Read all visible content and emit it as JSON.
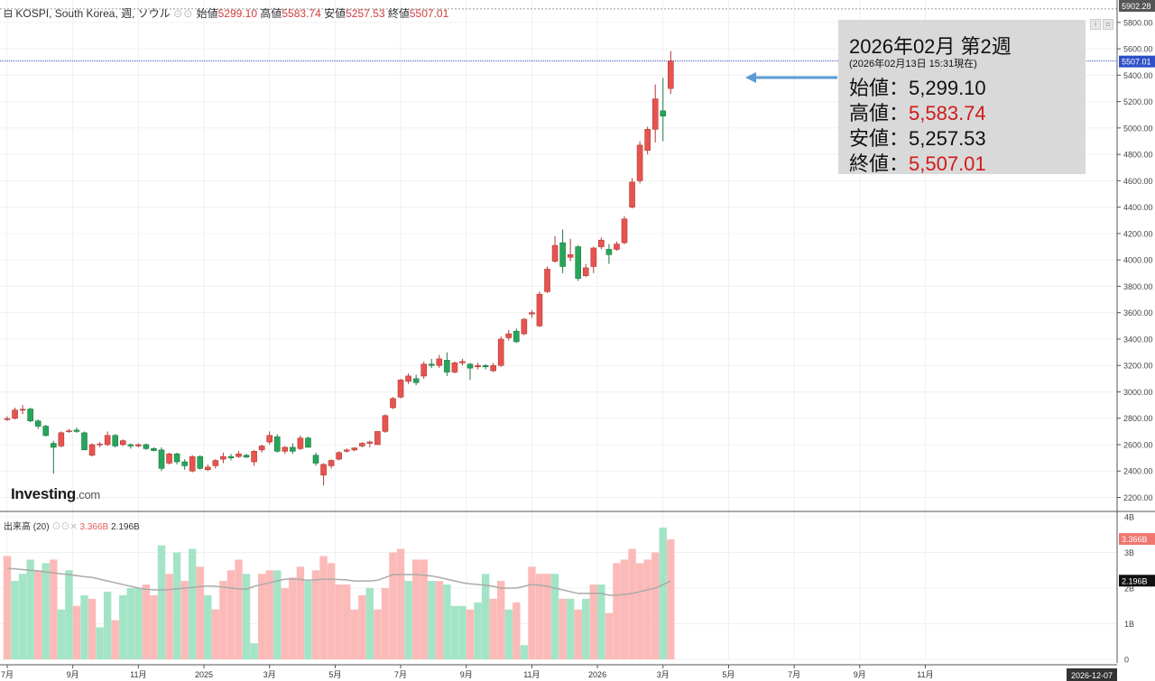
{
  "header": {
    "symbol": "KOSPI, South Korea, 週, ソウル",
    "open_label": "始値",
    "open": "5299.10",
    "high_label": "高値",
    "high": "5583.74",
    "low_label": "安値",
    "low": "5257.53",
    "close_label": "終値",
    "close": "5507.01"
  },
  "volume_header": {
    "label": "出来高 (20)",
    "current": "3.366B",
    "avg": "2.196B"
  },
  "logo": {
    "brand": "Investing",
    "suffix": ".com"
  },
  "tooltip": {
    "title": "2026年02月 第2週",
    "subtitle": "(2026年02月13日 15:31現在)",
    "open_label": "始値：",
    "open": "5,299.10",
    "high_label": "高値：",
    "high": "5,583.74",
    "low_label": "安値：",
    "low": "5,257.53",
    "close_label": "終値：",
    "close": "5,507.01"
  },
  "colors": {
    "up": "#e8534f",
    "down": "#26a65b",
    "vol_up": "#fbbab8",
    "vol_down": "#a3e4c6",
    "ma": "#aaaaaa",
    "arrow": "#5a9bd5"
  },
  "chart_data": {
    "type": "candlestick",
    "frequency": "weekly",
    "ylim": [
      2100,
      5960
    ],
    "yticks": [
      2200,
      2400,
      2600,
      2800,
      3000,
      3200,
      3400,
      3600,
      3800,
      4000,
      4200,
      4400,
      4600,
      4800,
      5000,
      5200,
      5400,
      5600,
      5800
    ],
    "ylabels": [
      "2200.00",
      "2400.00",
      "2600.00",
      "2800.00",
      "3000.00",
      "3200.00",
      "3400.00",
      "3600.00",
      "3800.00",
      "4000.00",
      "4200.00",
      "4400.00",
      "4600.00",
      "4800.00",
      "5000.00",
      "5200.00",
      "5400.00",
      "5600.00",
      "5800.00"
    ],
    "top_label": "5902.28",
    "last_label": "5507.01",
    "last_value": 5507.01,
    "x_labels": [
      "7月",
      "9月",
      "11月",
      "2025",
      "3月",
      "5月",
      "7月",
      "9月",
      "11月",
      "2026",
      "3月",
      "5月",
      "7月",
      "9月",
      "11月"
    ],
    "x_label_index": [
      0,
      8.5,
      17,
      25.5,
      34,
      42.5,
      51,
      59.5,
      68,
      76.5,
      85,
      93.5,
      102,
      110.5,
      119
    ],
    "date_label": "2026-12-07",
    "candles": [
      {
        "o": 2790,
        "h": 2815,
        "l": 2780,
        "c": 2798
      },
      {
        "o": 2800,
        "h": 2880,
        "l": 2790,
        "c": 2862
      },
      {
        "o": 2865,
        "h": 2900,
        "l": 2830,
        "c": 2868
      },
      {
        "o": 2870,
        "h": 2880,
        "l": 2770,
        "c": 2780
      },
      {
        "o": 2780,
        "h": 2790,
        "l": 2720,
        "c": 2740
      },
      {
        "o": 2740,
        "h": 2750,
        "l": 2660,
        "c": 2670
      },
      {
        "o": 2610,
        "h": 2630,
        "l": 2380,
        "c": 2580
      },
      {
        "o": 2590,
        "h": 2700,
        "l": 2580,
        "c": 2690
      },
      {
        "o": 2700,
        "h": 2720,
        "l": 2690,
        "c": 2705
      },
      {
        "o": 2710,
        "h": 2730,
        "l": 2690,
        "c": 2700
      },
      {
        "o": 2690,
        "h": 2700,
        "l": 2560,
        "c": 2560
      },
      {
        "o": 2520,
        "h": 2610,
        "l": 2510,
        "c": 2600
      },
      {
        "o": 2600,
        "h": 2620,
        "l": 2580,
        "c": 2605
      },
      {
        "o": 2600,
        "h": 2700,
        "l": 2590,
        "c": 2670
      },
      {
        "o": 2670,
        "h": 2680,
        "l": 2580,
        "c": 2590
      },
      {
        "o": 2600,
        "h": 2640,
        "l": 2590,
        "c": 2630
      },
      {
        "o": 2600,
        "h": 2610,
        "l": 2570,
        "c": 2590
      },
      {
        "o": 2590,
        "h": 2610,
        "l": 2580,
        "c": 2600
      },
      {
        "o": 2600,
        "h": 2610,
        "l": 2560,
        "c": 2570
      },
      {
        "o": 2570,
        "h": 2580,
        "l": 2550,
        "c": 2555
      },
      {
        "o": 2560,
        "h": 2580,
        "l": 2400,
        "c": 2420
      },
      {
        "o": 2460,
        "h": 2540,
        "l": 2450,
        "c": 2530
      },
      {
        "o": 2530,
        "h": 2540,
        "l": 2450,
        "c": 2470
      },
      {
        "o": 2470,
        "h": 2490,
        "l": 2410,
        "c": 2440
      },
      {
        "o": 2400,
        "h": 2520,
        "l": 2390,
        "c": 2510
      },
      {
        "o": 2510,
        "h": 2520,
        "l": 2410,
        "c": 2420
      },
      {
        "o": 2410,
        "h": 2450,
        "l": 2400,
        "c": 2430
      },
      {
        "o": 2440,
        "h": 2490,
        "l": 2420,
        "c": 2480
      },
      {
        "o": 2490,
        "h": 2540,
        "l": 2460,
        "c": 2510
      },
      {
        "o": 2510,
        "h": 2530,
        "l": 2480,
        "c": 2500
      },
      {
        "o": 2510,
        "h": 2550,
        "l": 2500,
        "c": 2530
      },
      {
        "o": 2520,
        "h": 2530,
        "l": 2500,
        "c": 2505
      },
      {
        "o": 2470,
        "h": 2560,
        "l": 2440,
        "c": 2550
      },
      {
        "o": 2560,
        "h": 2600,
        "l": 2540,
        "c": 2590
      },
      {
        "o": 2620,
        "h": 2700,
        "l": 2600,
        "c": 2670
      },
      {
        "o": 2660,
        "h": 2680,
        "l": 2540,
        "c": 2550
      },
      {
        "o": 2550,
        "h": 2590,
        "l": 2530,
        "c": 2580
      },
      {
        "o": 2580,
        "h": 2610,
        "l": 2530,
        "c": 2550
      },
      {
        "o": 2570,
        "h": 2670,
        "l": 2560,
        "c": 2650
      },
      {
        "o": 2650,
        "h": 2660,
        "l": 2580,
        "c": 2580
      },
      {
        "o": 2520,
        "h": 2540,
        "l": 2440,
        "c": 2460
      },
      {
        "o": 2370,
        "h": 2460,
        "l": 2290,
        "c": 2450
      },
      {
        "o": 2440,
        "h": 2490,
        "l": 2420,
        "c": 2480
      },
      {
        "o": 2490,
        "h": 2550,
        "l": 2480,
        "c": 2540
      },
      {
        "o": 2550,
        "h": 2570,
        "l": 2540,
        "c": 2560
      },
      {
        "o": 2560,
        "h": 2580,
        "l": 2550,
        "c": 2575
      },
      {
        "o": 2590,
        "h": 2620,
        "l": 2580,
        "c": 2610
      },
      {
        "o": 2610,
        "h": 2630,
        "l": 2580,
        "c": 2620
      },
      {
        "o": 2600,
        "h": 2700,
        "l": 2600,
        "c": 2700
      },
      {
        "o": 2700,
        "h": 2830,
        "l": 2690,
        "c": 2820
      },
      {
        "o": 2880,
        "h": 2960,
        "l": 2870,
        "c": 2950
      },
      {
        "o": 2960,
        "h": 3100,
        "l": 2950,
        "c": 3090
      },
      {
        "o": 3080,
        "h": 3140,
        "l": 3060,
        "c": 3120
      },
      {
        "o": 3100,
        "h": 3130,
        "l": 3050,
        "c": 3070
      },
      {
        "o": 3120,
        "h": 3230,
        "l": 3100,
        "c": 3210
      },
      {
        "o": 3210,
        "h": 3250,
        "l": 3180,
        "c": 3200
      },
      {
        "o": 3200,
        "h": 3280,
        "l": 3180,
        "c": 3250
      },
      {
        "o": 3240,
        "h": 3300,
        "l": 3120,
        "c": 3150
      },
      {
        "o": 3150,
        "h": 3230,
        "l": 3140,
        "c": 3220
      },
      {
        "o": 3220,
        "h": 3250,
        "l": 3200,
        "c": 3230
      },
      {
        "o": 3210,
        "h": 3220,
        "l": 3090,
        "c": 3180
      },
      {
        "o": 3190,
        "h": 3220,
        "l": 3170,
        "c": 3200
      },
      {
        "o": 3200,
        "h": 3210,
        "l": 3170,
        "c": 3190
      },
      {
        "o": 3160,
        "h": 3220,
        "l": 3150,
        "c": 3200
      },
      {
        "o": 3200,
        "h": 3420,
        "l": 3190,
        "c": 3400
      },
      {
        "o": 3410,
        "h": 3470,
        "l": 3390,
        "c": 3440
      },
      {
        "o": 3460,
        "h": 3480,
        "l": 3370,
        "c": 3380
      },
      {
        "o": 3440,
        "h": 3560,
        "l": 3430,
        "c": 3550
      },
      {
        "o": 3590,
        "h": 3620,
        "l": 3560,
        "c": 3600
      },
      {
        "o": 3500,
        "h": 3760,
        "l": 3490,
        "c": 3740
      },
      {
        "o": 3760,
        "h": 3950,
        "l": 3750,
        "c": 3930
      },
      {
        "o": 3990,
        "h": 4180,
        "l": 3980,
        "c": 4110
      },
      {
        "o": 4130,
        "h": 4230,
        "l": 3900,
        "c": 3950
      },
      {
        "o": 4020,
        "h": 4160,
        "l": 3990,
        "c": 4040
      },
      {
        "o": 4100,
        "h": 4110,
        "l": 3840,
        "c": 3860
      },
      {
        "o": 3880,
        "h": 3970,
        "l": 3870,
        "c": 3940
      },
      {
        "o": 3950,
        "h": 4100,
        "l": 3900,
        "c": 4090
      },
      {
        "o": 4100,
        "h": 4170,
        "l": 4080,
        "c": 4150
      },
      {
        "o": 4080,
        "h": 4120,
        "l": 3970,
        "c": 4040
      },
      {
        "o": 4080,
        "h": 4140,
        "l": 4070,
        "c": 4120
      },
      {
        "o": 4130,
        "h": 4330,
        "l": 4120,
        "c": 4310
      },
      {
        "o": 4400,
        "h": 4620,
        "l": 4390,
        "c": 4590
      },
      {
        "o": 4600,
        "h": 4900,
        "l": 4580,
        "c": 4870
      },
      {
        "o": 4830,
        "h": 5010,
        "l": 4800,
        "c": 4990
      },
      {
        "o": 4990,
        "h": 5330,
        "l": 4890,
        "c": 5220
      },
      {
        "o": 5130,
        "h": 5380,
        "l": 4900,
        "c": 5090
      },
      {
        "o": 5299.1,
        "h": 5583.74,
        "l": 5257.53,
        "c": 5507.01
      }
    ],
    "volume": {
      "ylim": [
        0,
        4
      ],
      "unit": "B",
      "yticks": [
        0,
        1,
        2,
        3,
        4
      ],
      "ylabels": [
        "0",
        "1B",
        "2B",
        "3B",
        "4B"
      ],
      "values": [
        2.9,
        2.2,
        2.4,
        2.8,
        2.5,
        2.7,
        2.8,
        1.4,
        2.5,
        1.5,
        1.8,
        1.7,
        0.9,
        1.9,
        1.1,
        1.8,
        2.0,
        2.0,
        2.1,
        1.8,
        3.2,
        2.4,
        3.0,
        2.2,
        3.1,
        2.6,
        1.8,
        1.4,
        2.2,
        2.5,
        2.8,
        2.4,
        0.45,
        2.4,
        2.5,
        2.5,
        2.0,
        2.3,
        2.6,
        2.2,
        2.5,
        2.9,
        2.7,
        2.1,
        2.1,
        1.4,
        1.8,
        2.0,
        1.4,
        2.0,
        3.0,
        3.1,
        2.2,
        2.8,
        2.8,
        2.2,
        2.2,
        2.1,
        1.5,
        1.5,
        1.4,
        1.6,
        2.4,
        1.7,
        2.2,
        1.4,
        1.6,
        0.4,
        2.6,
        2.4,
        2.4,
        2.4,
        1.7,
        1.7,
        1.4,
        1.7,
        2.1,
        2.1,
        1.3,
        2.7,
        2.8,
        3.1,
        2.7,
        2.8,
        3.0,
        3.7,
        3.366
      ],
      "up": [
        true,
        false,
        false,
        false,
        true,
        false,
        true,
        false,
        false,
        true,
        false,
        true,
        false,
        false,
        true,
        false,
        false,
        false,
        true,
        true,
        false,
        true,
        false,
        true,
        false,
        true,
        false,
        true,
        true,
        true,
        true,
        false,
        false,
        true,
        true,
        false,
        true,
        true,
        true,
        false,
        true,
        true,
        true,
        true,
        true,
        true,
        true,
        false,
        true,
        true,
        true,
        true,
        false,
        true,
        true,
        false,
        true,
        false,
        false,
        false,
        true,
        false,
        false,
        true,
        true,
        false,
        true,
        false,
        true,
        true,
        true,
        false,
        true,
        false,
        true,
        false,
        true,
        false,
        true,
        true,
        true,
        true,
        true,
        true,
        true,
        false,
        true
      ],
      "ma": [
        2.55,
        2.54,
        2.52,
        2.5,
        2.48,
        2.45,
        2.43,
        2.4,
        2.38,
        2.35,
        2.32,
        2.3,
        2.25,
        2.2,
        2.15,
        2.1,
        2.05,
        2.0,
        1.97,
        1.95,
        1.95,
        1.96,
        1.98,
        2.0,
        2.02,
        2.04,
        2.06,
        2.05,
        2.03,
        2.0,
        1.98,
        1.97,
        2.05,
        2.1,
        2.15,
        2.2,
        2.25,
        2.25,
        2.24,
        2.22,
        2.23,
        2.25,
        2.25,
        2.24,
        2.23,
        2.2,
        2.2,
        2.2,
        2.22,
        2.3,
        2.38,
        2.38,
        2.38,
        2.38,
        2.36,
        2.34,
        2.3,
        2.25,
        2.2,
        2.15,
        2.12,
        2.1,
        2.08,
        2.05,
        2.0,
        2.0,
        2.0,
        2.05,
        2.1,
        2.08,
        2.05,
        2.0,
        1.95,
        1.9,
        1.85,
        1.85,
        1.85,
        1.85,
        1.8,
        1.8,
        1.82,
        1.85,
        1.9,
        1.95,
        2.0,
        2.1,
        2.196
      ]
    }
  }
}
